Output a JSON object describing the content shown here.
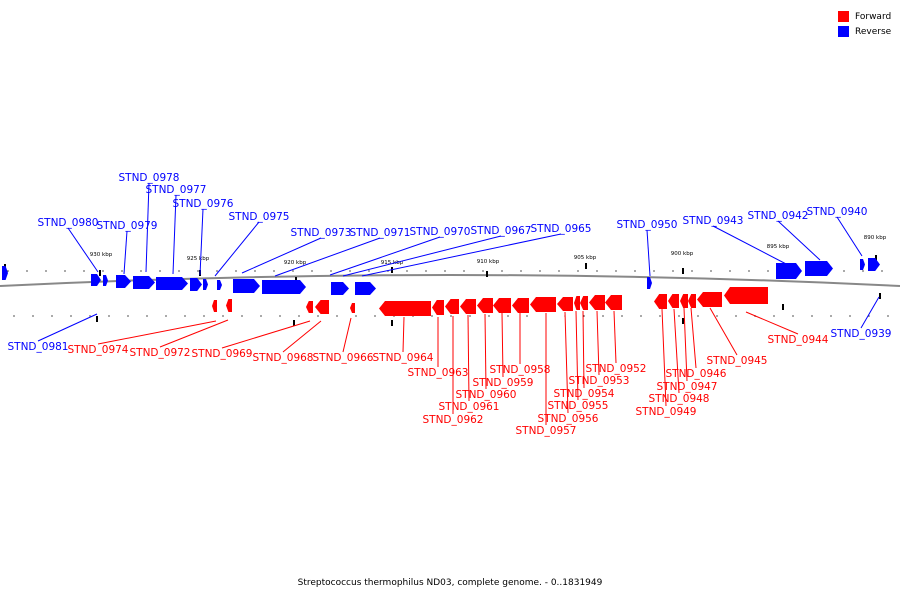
{
  "legend": {
    "forward_label": "Forward",
    "reverse_label": "Reverse",
    "forward_color": "#ff0000",
    "reverse_color": "#0000ff"
  },
  "caption": "Streptococcus thermophilus ND03, complete genome. - 0..1831949",
  "scale_labels": [
    "930 kbp",
    "925 kbp",
    "920 kbp",
    "915 kbp",
    "910 kbp",
    "905 kbp",
    "900 kbp",
    "895 kbp",
    "890 kbp"
  ],
  "genes": {
    "reverse": [
      "STND_0981",
      "STND_0980",
      "STND_0979",
      "STND_0978",
      "STND_0977",
      "STND_0976",
      "STND_0975",
      "STND_0973",
      "STND_0971",
      "STND_0970",
      "STND_0967",
      "STND_0965",
      "STND_0950",
      "STND_0943",
      "STND_0942",
      "STND_0940",
      "STND_0939"
    ],
    "forward": [
      "STND_0974",
      "STND_0972",
      "STND_0969",
      "STND_0968",
      "STND_0966",
      "STND_0964",
      "STND_0963",
      "STND_0962",
      "STND_0961",
      "STND_0960",
      "STND_0959",
      "STND_0958",
      "STND_0957",
      "STND_0956",
      "STND_0955",
      "STND_0954",
      "STND_0953",
      "STND_0952",
      "STND_0949",
      "STND_0948",
      "STND_0947",
      "STND_0946",
      "STND_0945",
      "STND_0944"
    ]
  }
}
